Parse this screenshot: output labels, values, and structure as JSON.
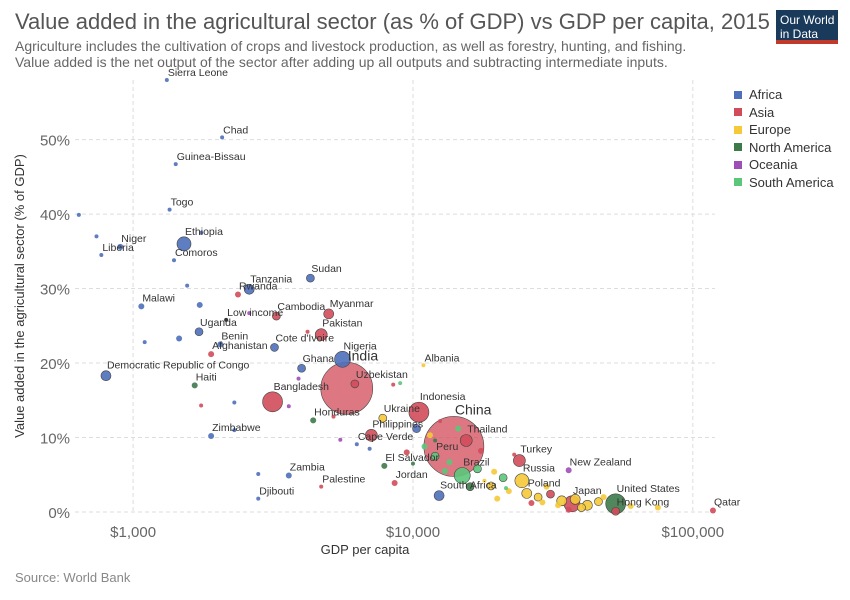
{
  "header": {
    "title": "Value added in the agricultural sector (as % of GDP) vs GDP per capita, 2015",
    "subtitle": "Agriculture includes the cultivation of crops and livestock production, as well as forestry, hunting, and fishing. Value added is the net output of the sector after adding up all outputs and subtracting intermediate inputs.",
    "logo_line1": "Our World",
    "logo_line2": "in Data"
  },
  "footer": {
    "source": "Source: World Bank"
  },
  "colors": {
    "Africa": "#4e6fba",
    "Asia": "#d14b5a",
    "Europe": "#f5c938",
    "North America": "#3d7a4a",
    "Oceania": "#9d4fb5",
    "South America": "#5bc57a"
  },
  "chart_data": {
    "type": "scatter",
    "title": "Value added in the agricultural sector (as % of GDP) vs GDP per capita, 2015",
    "xlabel": "GDP per capita",
    "ylabel": "Value added in the agricultural sector (% of GDP)",
    "xscale": "log",
    "xlim": [
      620,
      120000
    ],
    "ylim": [
      0,
      58
    ],
    "xticks": [
      {
        "v": 1000,
        "label": "$1,000"
      },
      {
        "v": 10000,
        "label": "$10,000"
      },
      {
        "v": 100000,
        "label": "$100,000"
      }
    ],
    "yticks": [
      {
        "v": 0,
        "label": "0%"
      },
      {
        "v": 10,
        "label": "10%"
      },
      {
        "v": 20,
        "label": "20%"
      },
      {
        "v": 30,
        "label": "30%"
      },
      {
        "v": 40,
        "label": "40%"
      },
      {
        "v": 50,
        "label": "50%"
      }
    ],
    "legend": [
      "Africa",
      "Asia",
      "Europe",
      "North America",
      "Oceania",
      "South America"
    ],
    "points": [
      {
        "label": "Sierra Leone",
        "x": 1320,
        "y": 58.0,
        "region": "Africa",
        "size": 2
      },
      {
        "label": "Chad",
        "x": 2080,
        "y": 50.3,
        "region": "Africa",
        "size": 2
      },
      {
        "label": "Guinea-Bissau",
        "x": 1420,
        "y": 46.7,
        "region": "Africa",
        "size": 2
      },
      {
        "label": "Togo",
        "x": 1350,
        "y": 40.6,
        "region": "Africa",
        "size": 2
      },
      {
        "label": "",
        "x": 640,
        "y": 39.9,
        "region": "Africa",
        "size": 2
      },
      {
        "label": "",
        "x": 740,
        "y": 37.0,
        "region": "Africa",
        "size": 2
      },
      {
        "label": "Ethiopia",
        "x": 1520,
        "y": 36.0,
        "region": "Africa",
        "size": 7
      },
      {
        "label": "",
        "x": 1750,
        "y": 37.5,
        "region": "Africa",
        "size": 2
      },
      {
        "label": "Niger",
        "x": 900,
        "y": 35.6,
        "region": "Africa",
        "size": 3
      },
      {
        "label": "Liberia",
        "x": 770,
        "y": 34.5,
        "region": "Africa",
        "size": 2
      },
      {
        "label": "Comoros",
        "x": 1400,
        "y": 33.8,
        "region": "Africa",
        "size": 2
      },
      {
        "label": "Sudan",
        "x": 4300,
        "y": 31.4,
        "region": "Africa",
        "size": 4
      },
      {
        "label": "",
        "x": 1560,
        "y": 30.4,
        "region": "Africa",
        "size": 2
      },
      {
        "label": "Tanzania",
        "x": 2600,
        "y": 29.9,
        "region": "Africa",
        "size": 5
      },
      {
        "label": "Rwanda",
        "x": 2370,
        "y": 29.2,
        "region": "Asia",
        "size": 3
      },
      {
        "label": "Malawi",
        "x": 1070,
        "y": 27.6,
        "region": "Africa",
        "size": 3
      },
      {
        "label": "",
        "x": 1730,
        "y": 27.8,
        "region": "Africa",
        "size": 3
      },
      {
        "label": "Cambodia",
        "x": 3250,
        "y": 26.3,
        "region": "Asia",
        "size": 4
      },
      {
        "label": "Myanmar",
        "x": 5000,
        "y": 26.6,
        "region": "Asia",
        "size": 5
      },
      {
        "label": "Low income",
        "x": 2150,
        "y": 25.8,
        "region": "",
        "size": 2
      },
      {
        "label": "Uganda",
        "x": 1720,
        "y": 24.2,
        "region": "Africa",
        "size": 4
      },
      {
        "label": "Pakistan",
        "x": 4700,
        "y": 23.8,
        "region": "Asia",
        "size": 6
      },
      {
        "label": "",
        "x": 1460,
        "y": 23.3,
        "region": "Africa",
        "size": 3
      },
      {
        "label": "",
        "x": 1100,
        "y": 22.8,
        "region": "Africa",
        "size": 2
      },
      {
        "label": "Benin",
        "x": 2050,
        "y": 22.5,
        "region": "Africa",
        "size": 3
      },
      {
        "label": "Cote d'Ivoire",
        "x": 3200,
        "y": 22.1,
        "region": "Africa",
        "size": 4
      },
      {
        "label": "Afghanistan",
        "x": 1900,
        "y": 21.2,
        "region": "Asia",
        "size": 3
      },
      {
        "label": "Nigeria",
        "x": 5600,
        "y": 20.5,
        "region": "Africa",
        "size": 8
      },
      {
        "label": "Ghana",
        "x": 4000,
        "y": 19.3,
        "region": "Africa",
        "size": 4
      },
      {
        "label": "Democratic Republic of Congo",
        "x": 800,
        "y": 18.3,
        "region": "Africa",
        "size": 5
      },
      {
        "label": "Haiti",
        "x": 1660,
        "y": 17.0,
        "region": "North America",
        "size": 3
      },
      {
        "label": "Albania",
        "x": 10900,
        "y": 19.7,
        "region": "Europe",
        "size": 2
      },
      {
        "label": "India",
        "x": 5800,
        "y": 16.6,
        "region": "Asia",
        "size": 26
      },
      {
        "label": "Uzbekistan",
        "x": 6200,
        "y": 17.2,
        "region": "Asia",
        "size": 4
      },
      {
        "label": "Bangladesh",
        "x": 3150,
        "y": 14.8,
        "region": "Asia",
        "size": 10
      },
      {
        "label": "",
        "x": 2300,
        "y": 14.7,
        "region": "Africa",
        "size": 2
      },
      {
        "label": "Indonesia",
        "x": 10500,
        "y": 13.4,
        "region": "Asia",
        "size": 10
      },
      {
        "label": "Honduras",
        "x": 4400,
        "y": 12.3,
        "region": "North America",
        "size": 3
      },
      {
        "label": "Ukraine",
        "x": 7800,
        "y": 12.6,
        "region": "Europe",
        "size": 4
      },
      {
        "label": "",
        "x": 10300,
        "y": 11.2,
        "region": "Africa",
        "size": 4
      },
      {
        "label": "Philippines",
        "x": 7100,
        "y": 10.3,
        "region": "Asia",
        "size": 6
      },
      {
        "label": "China",
        "x": 14000,
        "y": 8.8,
        "region": "Asia",
        "size": 30
      },
      {
        "label": "Thailand",
        "x": 15500,
        "y": 9.6,
        "region": "Asia",
        "size": 6
      },
      {
        "label": "Zimbabwe",
        "x": 1900,
        "y": 10.2,
        "region": "Africa",
        "size": 3
      },
      {
        "label": "Cape Verde",
        "x": 6300,
        "y": 9.1,
        "region": "Africa",
        "size": 2
      },
      {
        "label": "Turkey",
        "x": 24000,
        "y": 6.9,
        "region": "Asia",
        "size": 6
      },
      {
        "label": "El Salvador",
        "x": 7900,
        "y": 6.2,
        "region": "North America",
        "size": 3
      },
      {
        "label": "Peru",
        "x": 12000,
        "y": 7.5,
        "region": "South America",
        "size": 4
      },
      {
        "label": "New Zealand",
        "x": 36000,
        "y": 5.6,
        "region": "Oceania",
        "size": 3
      },
      {
        "label": "Zambia",
        "x": 3600,
        "y": 4.9,
        "region": "Africa",
        "size": 3
      },
      {
        "label": "Brazil",
        "x": 15000,
        "y": 4.9,
        "region": "South America",
        "size": 8
      },
      {
        "label": "Russia",
        "x": 24500,
        "y": 4.2,
        "region": "Europe",
        "size": 7
      },
      {
        "label": "Jordan",
        "x": 8600,
        "y": 3.9,
        "region": "Asia",
        "size": 3
      },
      {
        "label": "Palestine",
        "x": 4700,
        "y": 3.4,
        "region": "Asia",
        "size": 2
      },
      {
        "label": "Poland",
        "x": 25500,
        "y": 2.5,
        "region": "Europe",
        "size": 5
      },
      {
        "label": "South Africa",
        "x": 12400,
        "y": 2.2,
        "region": "Africa",
        "size": 5
      },
      {
        "label": "United States",
        "x": 53000,
        "y": 1.1,
        "region": "North America",
        "size": 10
      },
      {
        "label": "Japan",
        "x": 37000,
        "y": 1.1,
        "region": "Asia",
        "size": 8
      },
      {
        "label": "Djibouti",
        "x": 2800,
        "y": 1.8,
        "region": "Africa",
        "size": 2
      },
      {
        "label": "Hong Kong",
        "x": 53000,
        "y": 0.1,
        "region": "Asia",
        "size": 4
      },
      {
        "label": "Qatar",
        "x": 118000,
        "y": 0.2,
        "region": "Asia",
        "size": 3
      },
      {
        "label": "",
        "x": 19000,
        "y": 3.5,
        "region": "Europe",
        "size": 4
      },
      {
        "label": "",
        "x": 21000,
        "y": 4.6,
        "region": "South America",
        "size": 4
      },
      {
        "label": "",
        "x": 17000,
        "y": 5.8,
        "region": "South America",
        "size": 4
      },
      {
        "label": "",
        "x": 19500,
        "y": 5.4,
        "region": "Europe",
        "size": 3
      },
      {
        "label": "",
        "x": 28000,
        "y": 2.0,
        "region": "Europe",
        "size": 4
      },
      {
        "label": "",
        "x": 31000,
        "y": 2.4,
        "region": "Asia",
        "size": 4
      },
      {
        "label": "",
        "x": 34000,
        "y": 1.5,
        "region": "Europe",
        "size": 5
      },
      {
        "label": "",
        "x": 38000,
        "y": 1.7,
        "region": "Europe",
        "size": 5
      },
      {
        "label": "",
        "x": 42000,
        "y": 0.9,
        "region": "Europe",
        "size": 5
      },
      {
        "label": "",
        "x": 46000,
        "y": 1.4,
        "region": "Europe",
        "size": 4
      },
      {
        "label": "",
        "x": 40000,
        "y": 0.6,
        "region": "Europe",
        "size": 4
      },
      {
        "label": "",
        "x": 48000,
        "y": 2.0,
        "region": "Europe",
        "size": 3
      },
      {
        "label": "",
        "x": 60000,
        "y": 0.8,
        "region": "Europe",
        "size": 3
      },
      {
        "label": "",
        "x": 75000,
        "y": 0.6,
        "region": "Europe",
        "size": 3
      },
      {
        "label": "",
        "x": 22000,
        "y": 2.8,
        "region": "Europe",
        "size": 3
      },
      {
        "label": "",
        "x": 30000,
        "y": 3.4,
        "region": "Europe",
        "size": 3
      },
      {
        "label": "",
        "x": 13500,
        "y": 6.7,
        "region": "South America",
        "size": 3
      },
      {
        "label": "",
        "x": 9500,
        "y": 8.0,
        "region": "Asia",
        "size": 3
      },
      {
        "label": "",
        "x": 7000,
        "y": 8.5,
        "region": "Africa",
        "size": 2
      },
      {
        "label": "",
        "x": 11500,
        "y": 10.3,
        "region": "Europe",
        "size": 3
      },
      {
        "label": "",
        "x": 12500,
        "y": 12.2,
        "region": "Asia",
        "size": 2
      },
      {
        "label": "",
        "x": 16000,
        "y": 3.4,
        "region": "North America",
        "size": 4
      },
      {
        "label": "",
        "x": 26500,
        "y": 1.2,
        "region": "Asia",
        "size": 3
      },
      {
        "label": "",
        "x": 29000,
        "y": 1.3,
        "region": "Europe",
        "size": 3
      },
      {
        "label": "",
        "x": 33000,
        "y": 0.9,
        "region": "Europe",
        "size": 3
      },
      {
        "label": "",
        "x": 36000,
        "y": 0.3,
        "region": "Asia",
        "size": 3
      },
      {
        "label": "",
        "x": 20000,
        "y": 1.8,
        "region": "Europe",
        "size": 3
      },
      {
        "label": "",
        "x": 2600,
        "y": 26.7,
        "region": "Oceania",
        "size": 2
      },
      {
        "label": "",
        "x": 3900,
        "y": 17.9,
        "region": "Oceania",
        "size": 2
      },
      {
        "label": "",
        "x": 4200,
        "y": 24.2,
        "region": "Asia",
        "size": 2
      },
      {
        "label": "",
        "x": 2300,
        "y": 11.0,
        "region": "Africa",
        "size": 2
      },
      {
        "label": "",
        "x": 3600,
        "y": 14.2,
        "region": "Oceania",
        "size": 2
      },
      {
        "label": "",
        "x": 5500,
        "y": 9.7,
        "region": "Oceania",
        "size": 2
      },
      {
        "label": "",
        "x": 5200,
        "y": 12.8,
        "region": "Asia",
        "size": 2
      },
      {
        "label": "",
        "x": 8500,
        "y": 17.1,
        "region": "Asia",
        "size": 2
      },
      {
        "label": "",
        "x": 9000,
        "y": 17.3,
        "region": "South America",
        "size": 2
      },
      {
        "label": "",
        "x": 11000,
        "y": 8.8,
        "region": "South America",
        "size": 3
      },
      {
        "label": "",
        "x": 12000,
        "y": 9.6,
        "region": "North America",
        "size": 2
      },
      {
        "label": "",
        "x": 14500,
        "y": 11.2,
        "region": "South America",
        "size": 3
      },
      {
        "label": "",
        "x": 17500,
        "y": 8.2,
        "region": "Asia",
        "size": 3
      },
      {
        "label": "",
        "x": 23000,
        "y": 7.7,
        "region": "Asia",
        "size": 2
      },
      {
        "label": "",
        "x": 10000,
        "y": 6.5,
        "region": "North America",
        "size": 2
      },
      {
        "label": "",
        "x": 13000,
        "y": 5.5,
        "region": "South America",
        "size": 3
      },
      {
        "label": "",
        "x": 18000,
        "y": 4.2,
        "region": "Europe",
        "size": 2
      },
      {
        "label": "",
        "x": 21500,
        "y": 3.2,
        "region": "South America",
        "size": 2
      },
      {
        "label": "",
        "x": 2800,
        "y": 5.1,
        "region": "Africa",
        "size": 2
      },
      {
        "label": "",
        "x": 1750,
        "y": 14.3,
        "region": "Asia",
        "size": 2
      }
    ]
  }
}
